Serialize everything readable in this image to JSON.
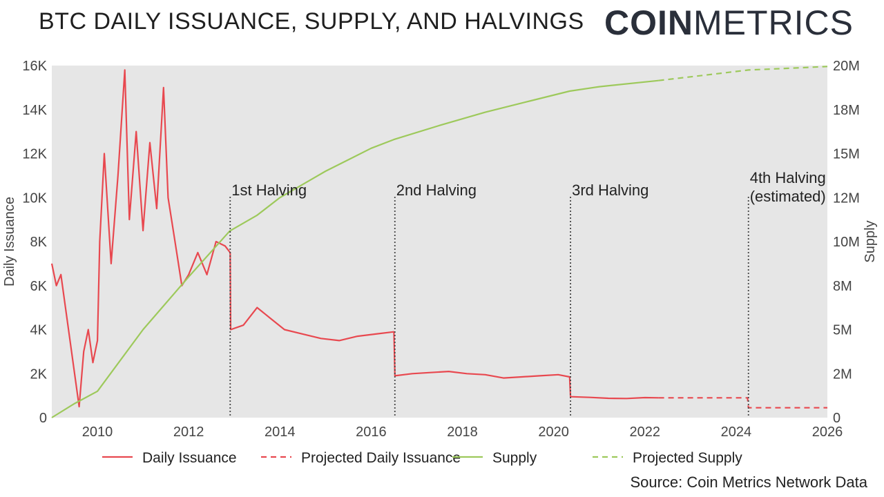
{
  "title": "BTC DAILY ISSUANCE, SUPPLY, AND HALVINGS",
  "logo": {
    "bold": "COIN",
    "light": "METRICS"
  },
  "source": "Source: Coin Metrics Network Data",
  "colors": {
    "issuance": "#e8484f",
    "supply": "#9dc95b",
    "plot_bg": "#e6e6e6",
    "halving_line": "#444444"
  },
  "chart_data": {
    "type": "line",
    "x_range": [
      2009.0,
      2026.0
    ],
    "x_ticks": [
      "2010",
      "2012",
      "2014",
      "2016",
      "2018",
      "2020",
      "2022",
      "2024",
      "2026"
    ],
    "ylabel_left": "Daily Issuance",
    "ylabel_right": "Supply",
    "ylim_left": [
      0,
      16000
    ],
    "ylim_right": [
      0,
      20000000
    ],
    "y_ticks_left": [
      "0",
      "2K",
      "4K",
      "6K",
      "8K",
      "10K",
      "12K",
      "14K",
      "16K"
    ],
    "y_ticks_right": [
      "0",
      "2M",
      "5M",
      "8M",
      "10M",
      "12M",
      "15M",
      "18M",
      "20M"
    ],
    "grid": false,
    "series": [
      {
        "name": "Daily Issuance",
        "axis": "left",
        "style": "solid",
        "points": [
          [
            2009.0,
            7000
          ],
          [
            2009.1,
            6000
          ],
          [
            2009.2,
            6500
          ],
          [
            2009.3,
            5000
          ],
          [
            2009.4,
            3500
          ],
          [
            2009.5,
            2000
          ],
          [
            2009.6,
            500
          ],
          [
            2009.7,
            3000
          ],
          [
            2009.8,
            4000
          ],
          [
            2009.9,
            2500
          ],
          [
            2010.0,
            3500
          ],
          [
            2010.05,
            8000
          ],
          [
            2010.15,
            12000
          ],
          [
            2010.3,
            7000
          ],
          [
            2010.45,
            11000
          ],
          [
            2010.6,
            15800
          ],
          [
            2010.7,
            9000
          ],
          [
            2010.85,
            13000
          ],
          [
            2011.0,
            8500
          ],
          [
            2011.15,
            12500
          ],
          [
            2011.3,
            9500
          ],
          [
            2011.45,
            15000
          ],
          [
            2011.55,
            10000
          ],
          [
            2011.7,
            8000
          ],
          [
            2011.85,
            6000
          ],
          [
            2012.0,
            6500
          ],
          [
            2012.2,
            7500
          ],
          [
            2012.4,
            6500
          ],
          [
            2012.6,
            8000
          ],
          [
            2012.8,
            7800
          ],
          [
            2012.91,
            7500
          ],
          [
            2012.92,
            4000
          ],
          [
            2013.2,
            4200
          ],
          [
            2013.5,
            5000
          ],
          [
            2013.8,
            4500
          ],
          [
            2014.1,
            4000
          ],
          [
            2014.5,
            3800
          ],
          [
            2014.9,
            3600
          ],
          [
            2015.3,
            3500
          ],
          [
            2015.7,
            3700
          ],
          [
            2016.1,
            3800
          ],
          [
            2016.5,
            3900
          ],
          [
            2016.52,
            1900
          ],
          [
            2016.9,
            2000
          ],
          [
            2017.3,
            2050
          ],
          [
            2017.7,
            2100
          ],
          [
            2018.1,
            2000
          ],
          [
            2018.5,
            1950
          ],
          [
            2018.9,
            1800
          ],
          [
            2019.3,
            1850
          ],
          [
            2019.7,
            1900
          ],
          [
            2020.1,
            1950
          ],
          [
            2020.35,
            1850
          ],
          [
            2020.37,
            950
          ],
          [
            2020.8,
            920
          ],
          [
            2021.2,
            880
          ],
          [
            2021.6,
            870
          ],
          [
            2022.0,
            910
          ],
          [
            2022.3,
            900
          ]
        ]
      },
      {
        "name": "Projected Daily Issuance",
        "axis": "left",
        "style": "dashed",
        "points": [
          [
            2022.3,
            900
          ],
          [
            2024.25,
            900
          ],
          [
            2024.27,
            450
          ],
          [
            2026.0,
            450
          ]
        ]
      },
      {
        "name": "Supply",
        "axis": "right",
        "style": "solid",
        "points": [
          [
            2009.0,
            0
          ],
          [
            2009.5,
            800000
          ],
          [
            2010.0,
            1500000
          ],
          [
            2011.0,
            5000000
          ],
          [
            2012.0,
            8000000
          ],
          [
            2012.9,
            10600000
          ],
          [
            2013.5,
            11500000
          ],
          [
            2014.0,
            12500000
          ],
          [
            2015.0,
            14000000
          ],
          [
            2016.0,
            15300000
          ],
          [
            2016.5,
            15800000
          ],
          [
            2017.5,
            16600000
          ],
          [
            2018.5,
            17350000
          ],
          [
            2019.5,
            18000000
          ],
          [
            2020.35,
            18550000
          ],
          [
            2021.0,
            18800000
          ],
          [
            2022.3,
            19150000
          ]
        ]
      },
      {
        "name": "Projected Supply",
        "axis": "right",
        "style": "dashed",
        "points": [
          [
            2022.3,
            19150000
          ],
          [
            2023.3,
            19450000
          ],
          [
            2024.27,
            19750000
          ],
          [
            2025.2,
            19850000
          ],
          [
            2026.0,
            19950000
          ]
        ]
      }
    ],
    "halvings": [
      {
        "x": 2012.91,
        "label": "1st Halving"
      },
      {
        "x": 2016.52,
        "label": "2nd Halving"
      },
      {
        "x": 2020.37,
        "label": "3rd Halving"
      },
      {
        "x": 2024.27,
        "label": "4th Halving\n(estimated)"
      }
    ],
    "legend": {
      "placement": "bottom",
      "items": [
        "Daily Issuance",
        "Projected Daily Issuance",
        "Supply",
        "Projected Supply"
      ]
    }
  }
}
